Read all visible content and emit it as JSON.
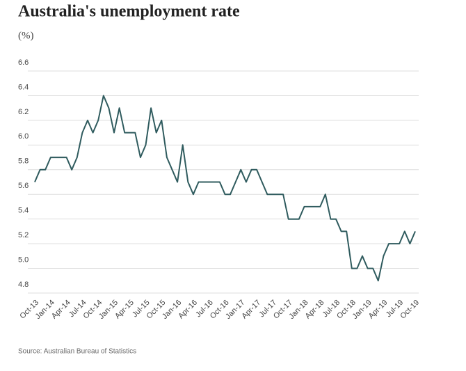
{
  "chart_data": {
    "type": "line",
    "title": "Australia's unemployment rate",
    "subtitle": "(%)",
    "source": "Source: Australian Bureau of Statistics",
    "categories": [
      "Oct-13",
      null,
      null,
      "Jan-14",
      null,
      null,
      "Apr-14",
      null,
      null,
      "Jul-14",
      null,
      null,
      "Oct-14",
      null,
      null,
      "Jan-15",
      null,
      null,
      "Apr-15",
      null,
      null,
      "Jul-15",
      null,
      null,
      "Oct-15",
      null,
      null,
      "Jan-16",
      null,
      null,
      "Apr-16",
      null,
      null,
      "Jul-16",
      null,
      null,
      "Oct-16",
      null,
      null,
      "Jan-17",
      null,
      null,
      "Apr-17",
      null,
      null,
      "Jul-17",
      null,
      null,
      "Oct-17",
      null,
      null,
      "Jan-18",
      null,
      null,
      "Apr-18",
      null,
      null,
      "Jul-18",
      null,
      null,
      "Oct-18",
      null,
      null,
      "Jan-19",
      null,
      null,
      "Apr-19",
      null,
      null,
      "Jul-19",
      null,
      null,
      "Oct-19"
    ],
    "values": [
      5.7,
      5.8,
      5.8,
      5.9,
      5.9,
      5.9,
      5.9,
      5.8,
      5.9,
      6.1,
      6.2,
      6.1,
      6.2,
      6.4,
      6.3,
      6.1,
      6.3,
      6.1,
      6.1,
      6.1,
      5.9,
      6.0,
      6.3,
      6.1,
      6.2,
      5.9,
      5.8,
      5.7,
      6.0,
      5.7,
      5.6,
      5.7,
      5.7,
      5.7,
      5.7,
      5.7,
      5.6,
      5.6,
      5.7,
      5.8,
      5.7,
      5.8,
      5.8,
      5.7,
      5.6,
      5.6,
      5.6,
      5.6,
      5.4,
      5.4,
      5.4,
      5.5,
      5.5,
      5.5,
      5.5,
      5.6,
      5.4,
      5.4,
      5.3,
      5.3,
      5.0,
      5.0,
      5.1,
      5.0,
      5.0,
      4.9,
      5.1,
      5.2,
      5.2,
      5.2,
      5.3,
      5.2,
      5.3
    ],
    "color": "#2f5b5e",
    "ylim": [
      4.8,
      6.6
    ],
    "yticks": [
      4.8,
      {
        "value": 5,
        "label": "5.0"
      },
      5.2,
      5.4,
      5.6,
      5.8,
      {
        "value": 6,
        "label": "6.0"
      },
      6.2,
      6.4,
      6.6
    ],
    "grid": true
  }
}
